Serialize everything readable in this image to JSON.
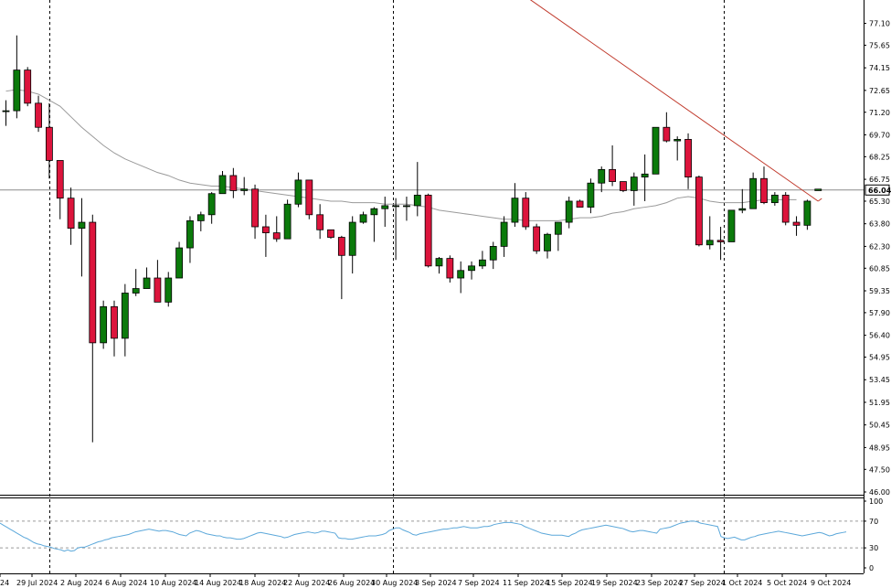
{
  "chart_data": [
    {
      "type": "candlestick",
      "title": "",
      "xlabel": "",
      "ylabel": "",
      "ylim": [
        46.0,
        77.8
      ],
      "y_ticks": [
        "77.10",
        "75.65",
        "74.15",
        "72.65",
        "71.20",
        "69.70",
        "68.25",
        "66.75",
        "65.30",
        "63.80",
        "62.30",
        "60.85",
        "59.35",
        "57.90",
        "56.40",
        "54.95",
        "53.45",
        "51.95",
        "50.45",
        "48.95",
        "47.50",
        "46.00"
      ],
      "x_tick_labels": [
        "24",
        "29 Jul 2024",
        "2 Aug 2024",
        "6 Aug 2024",
        "10 Aug 2024",
        "14 Aug 2024",
        "18 Aug 2024",
        "22 Aug 2024",
        "26 Aug 2024",
        "30 Aug 2024",
        "3 Sep 2024",
        "7 Sep 2024",
        "11 Sep 2024",
        "15 Sep 2024",
        "19 Sep 2024",
        "23 Sep 2024",
        "27 Sep 2024",
        "1 Oct 2024",
        "5 Oct 2024",
        "9 Oct 2024"
      ],
      "current_price_label": "66.04",
      "current_price": 66.04,
      "bull_color": "#0b7a0b",
      "bear_color": "#dc143c",
      "candles": [
        {
          "o": 71.3,
          "h": 72.0,
          "l": 70.3,
          "c": 71.3
        },
        {
          "o": 71.3,
          "h": 76.3,
          "l": 70.8,
          "c": 74.0
        },
        {
          "o": 74.0,
          "h": 74.2,
          "l": 71.6,
          "c": 71.8
        },
        {
          "o": 71.8,
          "h": 72.3,
          "l": 69.9,
          "c": 70.2
        },
        {
          "o": 70.2,
          "h": 71.8,
          "l": 66.8,
          "c": 68.0
        },
        {
          "o": 68.0,
          "h": 68.0,
          "l": 64.1,
          "c": 65.5
        },
        {
          "o": 65.5,
          "h": 66.2,
          "l": 62.4,
          "c": 63.5
        },
        {
          "o": 63.5,
          "h": 65.5,
          "l": 60.3,
          "c": 63.9
        },
        {
          "o": 63.9,
          "h": 64.4,
          "l": 49.3,
          "c": 55.9
        },
        {
          "o": 55.9,
          "h": 58.7,
          "l": 55.5,
          "c": 58.3
        },
        {
          "o": 58.3,
          "h": 58.7,
          "l": 55.0,
          "c": 56.2
        },
        {
          "o": 56.2,
          "h": 59.8,
          "l": 55.0,
          "c": 59.2
        },
        {
          "o": 59.2,
          "h": 60.8,
          "l": 59.0,
          "c": 59.5
        },
        {
          "o": 59.5,
          "h": 60.9,
          "l": 59.5,
          "c": 60.2
        },
        {
          "o": 60.2,
          "h": 61.4,
          "l": 58.6,
          "c": 58.6
        },
        {
          "o": 58.6,
          "h": 60.6,
          "l": 58.3,
          "c": 60.2
        },
        {
          "o": 60.2,
          "h": 62.6,
          "l": 60.2,
          "c": 62.2
        },
        {
          "o": 62.2,
          "h": 64.3,
          "l": 61.2,
          "c": 64.0
        },
        {
          "o": 64.0,
          "h": 64.6,
          "l": 63.3,
          "c": 64.4
        },
        {
          "o": 64.4,
          "h": 65.9,
          "l": 63.8,
          "c": 65.8
        },
        {
          "o": 65.8,
          "h": 67.3,
          "l": 65.8,
          "c": 67.0
        },
        {
          "o": 67.0,
          "h": 67.5,
          "l": 65.5,
          "c": 66.0
        },
        {
          "o": 66.0,
          "h": 66.9,
          "l": 65.7,
          "c": 66.1
        },
        {
          "o": 66.1,
          "h": 66.4,
          "l": 62.8,
          "c": 63.6
        },
        {
          "o": 63.6,
          "h": 64.4,
          "l": 61.6,
          "c": 63.2
        },
        {
          "o": 63.2,
          "h": 64.3,
          "l": 62.6,
          "c": 62.8
        },
        {
          "o": 62.8,
          "h": 65.4,
          "l": 62.8,
          "c": 65.1
        },
        {
          "o": 65.1,
          "h": 67.2,
          "l": 64.9,
          "c": 66.7
        },
        {
          "o": 66.7,
          "h": 66.7,
          "l": 64.1,
          "c": 64.4
        },
        {
          "o": 64.4,
          "h": 65.1,
          "l": 62.8,
          "c": 63.4
        },
        {
          "o": 63.4,
          "h": 63.4,
          "l": 62.8,
          "c": 62.9
        },
        {
          "o": 62.9,
          "h": 63.0,
          "l": 58.8,
          "c": 61.7
        },
        {
          "o": 61.7,
          "h": 64.3,
          "l": 60.5,
          "c": 63.9
        },
        {
          "o": 63.9,
          "h": 64.6,
          "l": 63.8,
          "c": 64.4
        },
        {
          "o": 64.4,
          "h": 64.9,
          "l": 62.6,
          "c": 64.8
        },
        {
          "o": 64.8,
          "h": 65.6,
          "l": 63.6,
          "c": 65.0
        },
        {
          "o": 65.0,
          "h": 65.5,
          "l": 61.4,
          "c": 65.0
        },
        {
          "o": 65.0,
          "h": 65.6,
          "l": 64.0,
          "c": 65.0
        },
        {
          "o": 65.0,
          "h": 67.9,
          "l": 64.3,
          "c": 65.7
        },
        {
          "o": 65.7,
          "h": 65.8,
          "l": 60.9,
          "c": 61.0
        },
        {
          "o": 61.0,
          "h": 61.6,
          "l": 60.5,
          "c": 61.5
        },
        {
          "o": 61.5,
          "h": 61.7,
          "l": 59.9,
          "c": 60.2
        },
        {
          "o": 60.2,
          "h": 61.3,
          "l": 59.2,
          "c": 60.7
        },
        {
          "o": 60.7,
          "h": 61.3,
          "l": 60.1,
          "c": 61.0
        },
        {
          "o": 61.0,
          "h": 62.0,
          "l": 60.8,
          "c": 61.4
        },
        {
          "o": 61.4,
          "h": 62.6,
          "l": 60.8,
          "c": 62.3
        },
        {
          "o": 62.3,
          "h": 64.3,
          "l": 61.6,
          "c": 63.9
        },
        {
          "o": 63.9,
          "h": 66.5,
          "l": 63.6,
          "c": 65.5
        },
        {
          "o": 65.5,
          "h": 65.9,
          "l": 63.4,
          "c": 63.6
        },
        {
          "o": 63.6,
          "h": 63.8,
          "l": 61.8,
          "c": 62.0
        },
        {
          "o": 62.0,
          "h": 63.2,
          "l": 61.5,
          "c": 63.1
        },
        {
          "o": 63.1,
          "h": 63.9,
          "l": 62.0,
          "c": 63.9
        },
        {
          "o": 63.9,
          "h": 65.6,
          "l": 63.5,
          "c": 65.3
        },
        {
          "o": 65.3,
          "h": 65.4,
          "l": 64.9,
          "c": 64.9
        },
        {
          "o": 64.9,
          "h": 66.8,
          "l": 64.5,
          "c": 66.5
        },
        {
          "o": 66.5,
          "h": 67.6,
          "l": 65.9,
          "c": 67.4
        },
        {
          "o": 67.4,
          "h": 69.0,
          "l": 66.3,
          "c": 66.6
        },
        {
          "o": 66.6,
          "h": 66.6,
          "l": 65.9,
          "c": 66.0
        },
        {
          "o": 66.0,
          "h": 67.2,
          "l": 65.0,
          "c": 66.9
        },
        {
          "o": 66.9,
          "h": 68.4,
          "l": 65.3,
          "c": 67.1
        },
        {
          "o": 67.1,
          "h": 70.2,
          "l": 67.1,
          "c": 70.2
        },
        {
          "o": 70.2,
          "h": 71.2,
          "l": 69.2,
          "c": 69.3
        },
        {
          "o": 69.3,
          "h": 69.6,
          "l": 68.0,
          "c": 69.4
        },
        {
          "o": 69.4,
          "h": 69.8,
          "l": 66.1,
          "c": 66.9
        },
        {
          "o": 66.9,
          "h": 67.0,
          "l": 62.3,
          "c": 62.4
        },
        {
          "o": 62.4,
          "h": 64.3,
          "l": 62.1,
          "c": 62.7
        },
        {
          "o": 62.7,
          "h": 63.6,
          "l": 61.4,
          "c": 62.6
        },
        {
          "o": 62.6,
          "h": 64.7,
          "l": 62.6,
          "c": 64.7
        },
        {
          "o": 64.7,
          "h": 66.1,
          "l": 64.5,
          "c": 64.8
        },
        {
          "o": 64.8,
          "h": 67.2,
          "l": 64.8,
          "c": 66.8
        },
        {
          "o": 66.8,
          "h": 67.6,
          "l": 65.1,
          "c": 65.2
        },
        {
          "o": 65.2,
          "h": 65.9,
          "l": 65.0,
          "c": 65.7
        },
        {
          "o": 65.7,
          "h": 65.9,
          "l": 63.7,
          "c": 63.9
        },
        {
          "o": 63.9,
          "h": 64.3,
          "l": 63.0,
          "c": 63.7
        },
        {
          "o": 63.7,
          "h": 65.4,
          "l": 63.4,
          "c": 65.3
        },
        {
          "o": 66.0,
          "h": 66.1,
          "l": 66.0,
          "c": 66.1
        }
      ],
      "moving_average": [
        72.6,
        72.7,
        72.6,
        72.4,
        72.0,
        71.6,
        70.9,
        70.2,
        69.6,
        69.0,
        68.5,
        68.1,
        67.8,
        67.5,
        67.2,
        67.0,
        66.7,
        66.5,
        66.4,
        66.3,
        66.3,
        66.2,
        66.1,
        66.0,
        65.9,
        65.8,
        65.7,
        65.6,
        65.5,
        65.4,
        65.3,
        65.3,
        65.2,
        65.2,
        65.2,
        65.1,
        65.1,
        65.1,
        65.0,
        64.9,
        64.7,
        64.6,
        64.5,
        64.4,
        64.3,
        64.2,
        64.1,
        64.1,
        64.0,
        64.0,
        64.0,
        64.0,
        64.1,
        64.2,
        64.2,
        64.3,
        64.5,
        64.6,
        64.8,
        64.9,
        65.0,
        65.2,
        65.5,
        65.6,
        65.5,
        65.3,
        65.2,
        65.2,
        65.2,
        65.3,
        65.4,
        65.4,
        65.4,
        65.4
      ],
      "trendline": {
        "from": {
          "index": 42.0,
          "price": 81.9
        },
        "to": {
          "index": 75.0,
          "price": 65.3
        }
      },
      "vertical_separators": [
        "29 Jul 2024",
        "30 Aug 2024",
        "1 Oct 2024"
      ]
    },
    {
      "type": "line",
      "title": "",
      "xlabel": "",
      "ylabel": "",
      "ylim": [
        0,
        100
      ],
      "y_ticks": [
        "100",
        "70",
        "30",
        "0"
      ],
      "levels": [
        70,
        30
      ],
      "line_color": "#5ca8da",
      "values": [
        67,
        64,
        61,
        58,
        55,
        52,
        49,
        46,
        44,
        41,
        38,
        36,
        35,
        33,
        32,
        31,
        29,
        28,
        27,
        25,
        27,
        25,
        26,
        30,
        31,
        31,
        33,
        35,
        37,
        39,
        40,
        42,
        43,
        45,
        46,
        47,
        48,
        49,
        50,
        52,
        54,
        55,
        56,
        57,
        58,
        57,
        56,
        55,
        56,
        56,
        55,
        54,
        52,
        50,
        49,
        48,
        52,
        54,
        56,
        55,
        53,
        51,
        50,
        49,
        48,
        48,
        46,
        45,
        45,
        44,
        43,
        43,
        44,
        46,
        48,
        50,
        52,
        53,
        52,
        51,
        50,
        49,
        48,
        47,
        45,
        46,
        48,
        50,
        51,
        52,
        53,
        54,
        53,
        52,
        53,
        55,
        55,
        54,
        53,
        52,
        45,
        44,
        44,
        43,
        43,
        44,
        45,
        46,
        47,
        48,
        48,
        48,
        49,
        50,
        52,
        56,
        58,
        60,
        60,
        57,
        55,
        53,
        50,
        49,
        51,
        52,
        53,
        54,
        55,
        56,
        57,
        58,
        58,
        59,
        60,
        60,
        61,
        62,
        61,
        60,
        60,
        60,
        61,
        62,
        62,
        63,
        65,
        66,
        67,
        68,
        68,
        68,
        67,
        66,
        65,
        62,
        60,
        58,
        56,
        54,
        52,
        51,
        50,
        49,
        49,
        49,
        49,
        48,
        47,
        50,
        52,
        55,
        57,
        58,
        59,
        60,
        61,
        62,
        63,
        64,
        63,
        62,
        61,
        60,
        59,
        57,
        55,
        54,
        55,
        56,
        56,
        55,
        54,
        53,
        52,
        58,
        59,
        60,
        61,
        63,
        65,
        67,
        68,
        69,
        70,
        70,
        69,
        67,
        66,
        65,
        64,
        63,
        62,
        47,
        45,
        44,
        45,
        46,
        44,
        42,
        42,
        44,
        46,
        47,
        49,
        50,
        51,
        52,
        53,
        54,
        55,
        54,
        53,
        52,
        51,
        50,
        49,
        48,
        49,
        50,
        51,
        52,
        53,
        52,
        50,
        48,
        49,
        51,
        52,
        53,
        54
      ]
    }
  ]
}
